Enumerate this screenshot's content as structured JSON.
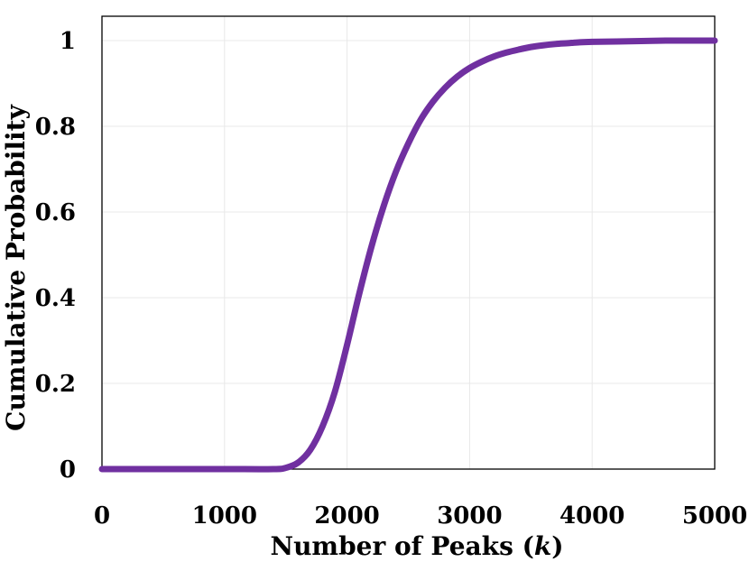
{
  "chart_data": {
    "type": "line",
    "title": "",
    "xlabel_prefix": "Number of Peaks (",
    "xlabel_var": "k",
    "xlabel_suffix": ")",
    "ylabel": "Cumulative Probability",
    "xlim": [
      0,
      5000
    ],
    "ylim": [
      0,
      1
    ],
    "xticks": [
      "0",
      "1000",
      "2000",
      "3000",
      "4000",
      "5000"
    ],
    "yticks": [
      "0",
      "0.2",
      "0.4",
      "0.6",
      "0.8",
      "1"
    ],
    "grid": true,
    "legend": "none",
    "series": [
      {
        "color": "#7030a0",
        "x": [
          0,
          500,
          1000,
          1400,
          1500,
          1600,
          1700,
          1800,
          1900,
          2000,
          2100,
          2200,
          2300,
          2400,
          2500,
          2600,
          2700,
          2800,
          2900,
          3000,
          3100,
          3200,
          3300,
          3400,
          3500,
          3600,
          3700,
          3800,
          3900,
          4000,
          4200,
          4400,
          4600,
          4800,
          5000
        ],
        "y": [
          0,
          0,
          0,
          0,
          0.003,
          0.015,
          0.045,
          0.1,
          0.18,
          0.29,
          0.41,
          0.52,
          0.615,
          0.695,
          0.76,
          0.815,
          0.857,
          0.89,
          0.916,
          0.936,
          0.951,
          0.963,
          0.972,
          0.979,
          0.985,
          0.989,
          0.992,
          0.994,
          0.996,
          0.997,
          0.998,
          0.999,
          1.0,
          1.0,
          1.0
        ]
      }
    ]
  }
}
